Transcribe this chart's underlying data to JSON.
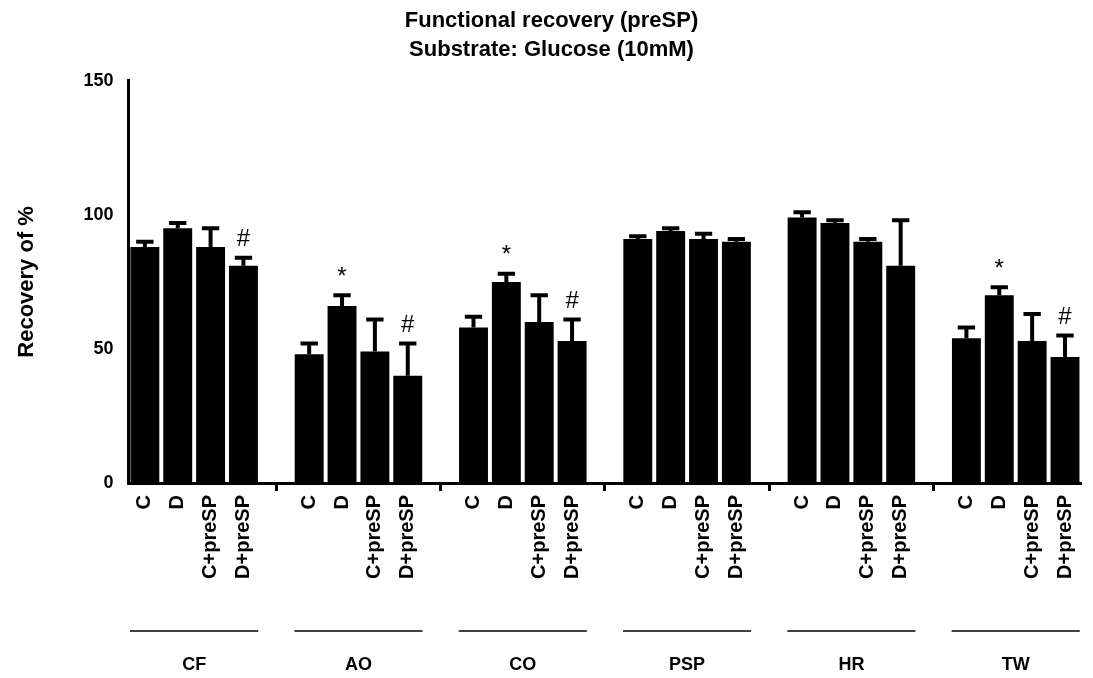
{
  "chart_data": {
    "type": "bar",
    "title": "Functional recovery (preSP)",
    "subtitle": "Substrate: Glucose (10mM)",
    "ylabel": "Recovery of %",
    "categories": [
      "C",
      "D",
      "C+preSP",
      "D+preSP",
      null,
      "C",
      "D",
      "C+preSP",
      "D+preSP",
      null,
      "C",
      "D",
      "C+preSP",
      "D+preSP",
      null,
      "C",
      "D",
      "C+preSP",
      "D+preSP",
      null,
      "C",
      "D",
      "C+preSP",
      "D+preSP",
      null,
      "C",
      "D",
      "C+preSP",
      "D+preSP"
    ],
    "values": [
      88,
      95,
      88,
      81,
      null,
      48,
      66,
      49,
      40,
      null,
      58,
      75,
      60,
      53,
      null,
      91,
      94,
      91,
      90,
      null,
      99,
      97,
      90,
      81,
      null,
      54,
      70,
      53,
      47
    ],
    "errors": [
      [
        88,
        90
      ],
      [
        95,
        97
      ],
      [
        88,
        95
      ],
      [
        81,
        84
      ],
      null,
      [
        48,
        52
      ],
      [
        66,
        70
      ],
      [
        49,
        61
      ],
      [
        40,
        52
      ],
      null,
      [
        58,
        62
      ],
      [
        75,
        78
      ],
      [
        60,
        70
      ],
      [
        53,
        61
      ],
      null,
      [
        91,
        92
      ],
      [
        94,
        95
      ],
      [
        91,
        93
      ],
      [
        90,
        91
      ],
      null,
      [
        99,
        101
      ],
      [
        97,
        98
      ],
      [
        90,
        91
      ],
      [
        81,
        98
      ],
      null,
      [
        54,
        58
      ],
      [
        70,
        73
      ],
      [
        53,
        63
      ],
      [
        47,
        55
      ]
    ],
    "value_labels": [
      null,
      null,
      null,
      "#",
      null,
      null,
      "*",
      null,
      "#",
      null,
      null,
      "*",
      null,
      "#",
      null,
      null,
      null,
      null,
      null,
      null,
      null,
      null,
      null,
      null,
      null,
      null,
      "*",
      null,
      "#"
    ],
    "color": "#000000",
    "annotations": [
      "CF",
      "AO",
      "CO",
      "PSP",
      "HR",
      "TW"
    ],
    "ylim": [
      0,
      150
    ],
    "yticks": [
      0,
      50,
      100,
      150
    ],
    "grid": false
  }
}
